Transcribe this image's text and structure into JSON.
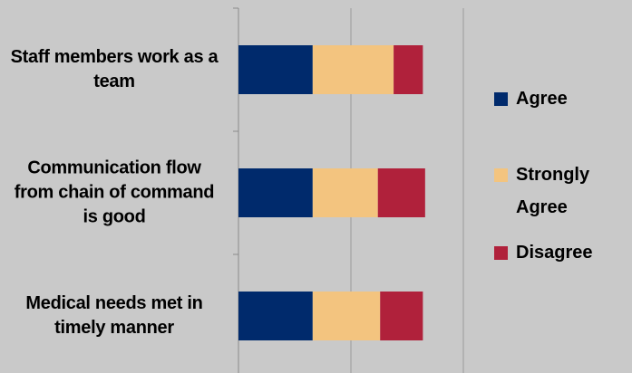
{
  "chart_data": {
    "type": "stacked_barh",
    "categories": [
      "Staff members work as a team",
      "Communication flow from chain of command is good",
      "Medical needs met in timely manner"
    ],
    "series": [
      {
        "name": "Agree",
        "color": "#002a6c",
        "values": [
          33,
          33,
          33
        ]
      },
      {
        "name": "Strongly Agree",
        "color": "#f3c47f",
        "values": [
          36,
          29,
          30
        ]
      },
      {
        "name": "Disagree",
        "color": "#b0213b",
        "values": [
          13,
          21,
          19
        ]
      }
    ],
    "xlim": [
      0,
      150
    ],
    "xticks": [
      0,
      50,
      100
    ],
    "grid": true,
    "legend": "right"
  }
}
